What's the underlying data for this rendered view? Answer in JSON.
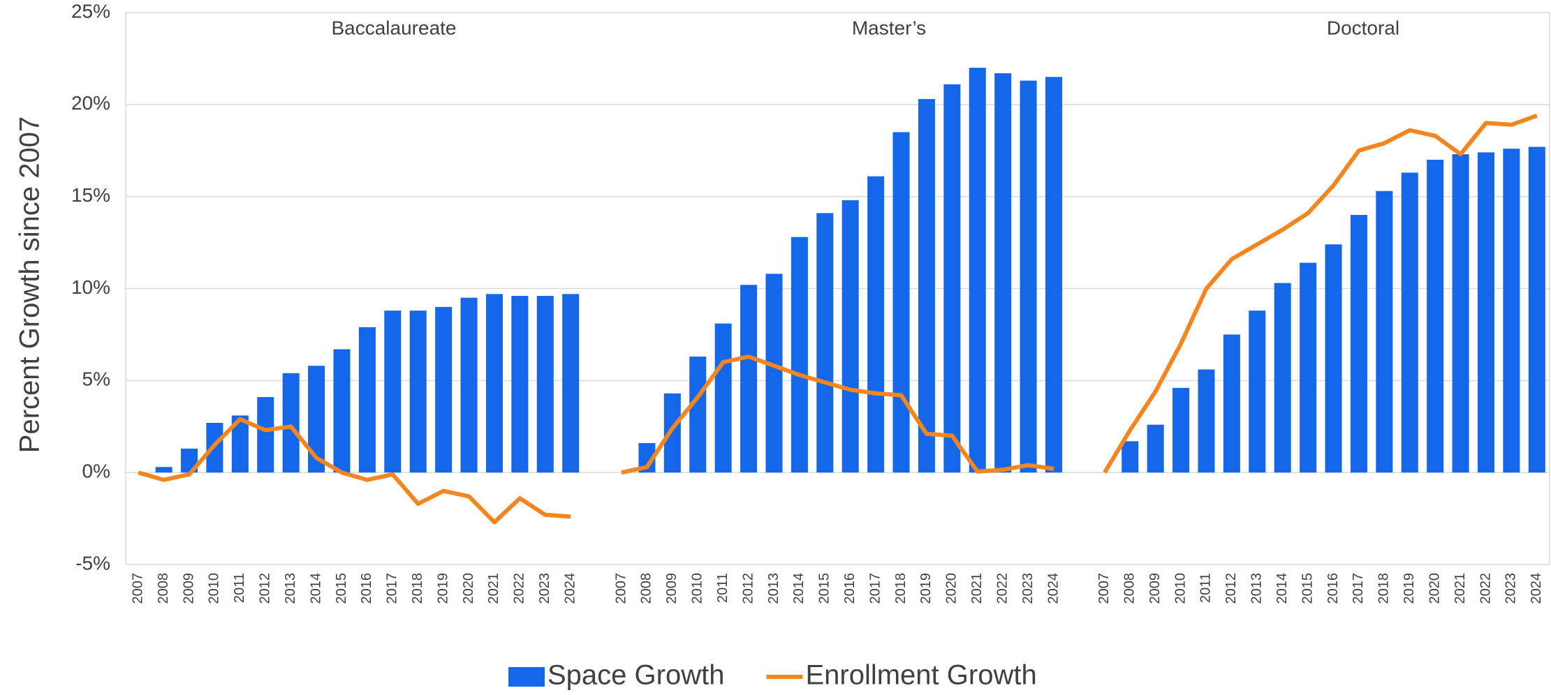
{
  "chart_data": {
    "type": "bar-line",
    "y_label": "Percent Growth since 2007",
    "groups": [
      "Baccalaureate",
      "Master’s",
      "Doctoral"
    ],
    "categories": [
      "2007",
      "2008",
      "2009",
      "2010",
      "2011",
      "2012",
      "2013",
      "2014",
      "2015",
      "2016",
      "2017",
      "2018",
      "2019",
      "2020",
      "2021",
      "2022",
      "2023",
      "2024",
      null,
      "2007",
      "2008",
      "2009",
      "2010",
      "2011",
      "2012",
      "2013",
      "2014",
      "2015",
      "2016",
      "2017",
      "2018",
      "2019",
      "2020",
      "2021",
      "2022",
      "2023",
      "2024",
      null,
      "2007",
      "2008",
      "2009",
      "2010",
      "2011",
      "2012",
      "2013",
      "2014",
      "2015",
      "2016",
      "2017",
      "2018",
      "2019",
      "2020",
      "2021",
      "2022",
      "2023",
      "2024"
    ],
    "series": [
      {
        "name": "Space Growth",
        "kind": "bar",
        "color": "#1467e8",
        "values": [
          0,
          0.3,
          1.3,
          2.7,
          3.1,
          4.1,
          5.4,
          5.8,
          6.7,
          7.9,
          8.8,
          8.8,
          9.0,
          9.5,
          9.7,
          9.6,
          9.6,
          9.7,
          null,
          0,
          1.6,
          4.3,
          6.3,
          8.1,
          10.2,
          10.8,
          12.8,
          14.1,
          14.8,
          16.1,
          18.5,
          20.3,
          21.1,
          22.0,
          21.7,
          21.3,
          21.5,
          null,
          0,
          1.7,
          2.6,
          4.6,
          5.6,
          7.5,
          8.8,
          10.3,
          11.4,
          12.4,
          14.0,
          15.3,
          16.3,
          17.0,
          17.3,
          17.4,
          17.6,
          17.7
        ]
      },
      {
        "name": "Enrollment Growth",
        "kind": "line",
        "color": "#f5861f",
        "values": [
          0,
          -0.4,
          -0.1,
          1.5,
          2.9,
          2.3,
          2.5,
          0.8,
          0,
          -0.4,
          -0.1,
          -1.7,
          -1.0,
          -1.3,
          -2.7,
          -1.4,
          -2.3,
          -2.4,
          null,
          0,
          0.3,
          2.4,
          4.1,
          6.0,
          6.3,
          5.8,
          5.3,
          4.9,
          4.5,
          4.3,
          4.2,
          2.1,
          2.0,
          0.05,
          0.15,
          0.4,
          0.2,
          null,
          0,
          2.3,
          4.4,
          7.0,
          10.0,
          11.6,
          12.4,
          13.2,
          14.1,
          15.6,
          17.5,
          17.9,
          18.6,
          18.3,
          17.3,
          19.0,
          18.9,
          19.4
        ]
      }
    ],
    "ylim": [
      -5,
      25
    ],
    "yticks": [
      {
        "value": -5,
        "label": "-5%"
      },
      {
        "value": 0,
        "label": "0%"
      },
      {
        "value": 5,
        "label": "5%"
      },
      {
        "value": 10,
        "label": "10%"
      },
      {
        "value": 15,
        "label": "15%"
      },
      {
        "value": 20,
        "label": "20%"
      },
      {
        "value": 25,
        "label": "25%"
      }
    ],
    "grid": true,
    "legend": "bottom"
  }
}
